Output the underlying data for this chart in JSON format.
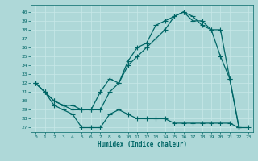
{
  "xlabel": "Humidex (Indice chaleur)",
  "bg_color": "#aed8d8",
  "line_color": "#006666",
  "marker": "+",
  "markersize": 4,
  "linewidth": 0.9,
  "xlim": [
    -0.5,
    23.5
  ],
  "ylim": [
    26.5,
    40.8
  ],
  "yticks": [
    27,
    28,
    29,
    30,
    31,
    32,
    33,
    34,
    35,
    36,
    37,
    38,
    39,
    40
  ],
  "xticks": [
    0,
    1,
    2,
    3,
    4,
    5,
    6,
    7,
    8,
    9,
    10,
    11,
    12,
    13,
    14,
    15,
    16,
    17,
    18,
    19,
    20,
    21,
    22,
    23
  ],
  "line1_x": [
    0,
    1,
    2,
    3,
    4,
    5,
    6,
    7,
    8,
    9,
    10,
    11,
    12,
    13,
    14,
    15,
    16,
    17,
    18,
    19,
    20,
    21,
    22,
    23
  ],
  "line1_y": [
    32,
    31,
    29.5,
    29,
    28.5,
    27,
    27,
    27,
    28.5,
    29,
    28.5,
    28,
    28,
    28,
    28,
    27.5,
    27.5,
    27.5,
    27.5,
    27.5,
    27.5,
    27.5,
    27,
    27
  ],
  "line2_x": [
    0,
    1,
    2,
    3,
    4,
    5,
    6,
    7,
    8,
    9,
    10,
    11,
    12,
    13,
    14,
    15,
    16,
    17,
    18,
    19,
    20,
    21,
    22
  ],
  "line2_y": [
    32,
    31,
    30,
    29.5,
    29.5,
    29,
    29,
    31,
    32.5,
    32,
    34.5,
    36,
    36.5,
    38.5,
    39,
    39.5,
    40,
    39,
    39,
    38,
    35,
    32.5,
    27
  ],
  "line3_x": [
    0,
    1,
    2,
    3,
    4,
    5,
    6,
    7,
    8,
    9,
    10,
    11,
    12,
    13,
    14,
    15,
    16,
    17,
    18,
    19,
    20,
    21,
    22
  ],
  "line3_y": [
    32,
    31,
    30,
    29.5,
    29,
    29,
    29,
    29,
    31,
    32,
    34,
    35,
    36,
    37,
    38,
    39.5,
    40,
    39.5,
    38.5,
    38,
    38,
    32.5,
    27
  ]
}
